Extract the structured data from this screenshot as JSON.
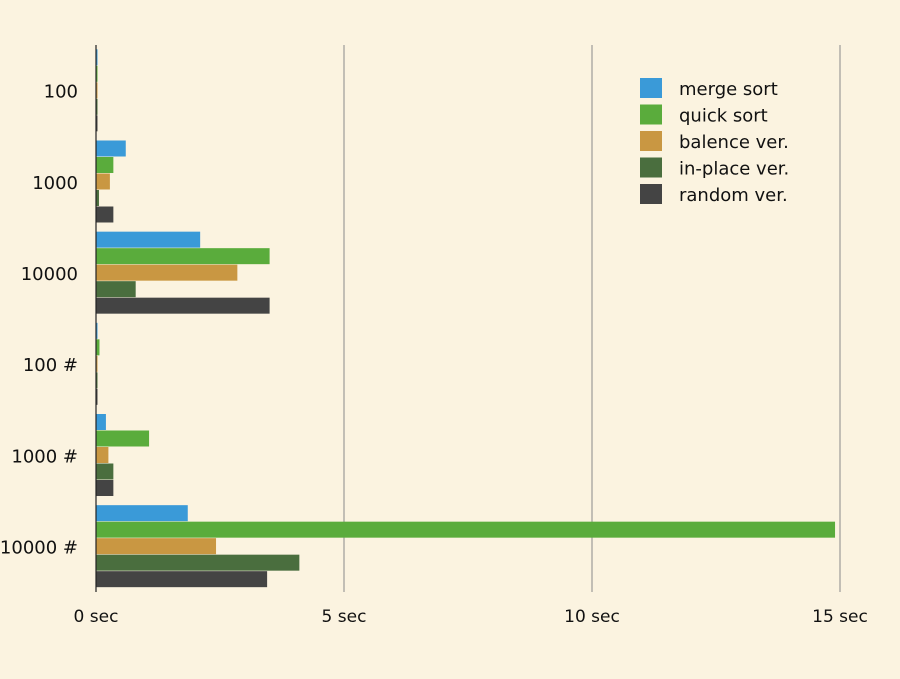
{
  "chart_data": {
    "type": "bar",
    "orientation": "horizontal",
    "title": "",
    "xlabel": "",
    "ylabel": "",
    "xlim": [
      0,
      15
    ],
    "x_ticks": [
      {
        "value": 0,
        "label": "0 sec"
      },
      {
        "value": 5,
        "label": "5 sec"
      },
      {
        "value": 10,
        "label": "10 sec"
      },
      {
        "value": 15,
        "label": "15 sec"
      }
    ],
    "grid": "vertical",
    "legend_position": "top-right",
    "categories": [
      "100",
      "1000",
      "10000",
      "100 #",
      "1000 #",
      "10000 #"
    ],
    "series": [
      {
        "name": "merge sort",
        "color": "#3a9ad8",
        "values": [
          0.01,
          0.6,
          2.1,
          0.01,
          0.2,
          1.85
        ]
      },
      {
        "name": "quick sort",
        "color": "#5aac3c",
        "values": [
          0.02,
          0.35,
          3.5,
          0.07,
          1.07,
          14.9
        ]
      },
      {
        "name": "balence ver.",
        "color": "#c99742",
        "values": [
          0.02,
          0.28,
          2.85,
          0.02,
          0.25,
          2.42
        ]
      },
      {
        "name": "in-place ver.",
        "color": "#4a6e3e",
        "values": [
          0.01,
          0.06,
          0.8,
          0.01,
          0.35,
          4.1
        ]
      },
      {
        "name": "random ver.",
        "color": "#444444",
        "values": [
          0.02,
          0.35,
          3.5,
          0.02,
          0.35,
          3.45
        ]
      }
    ]
  }
}
